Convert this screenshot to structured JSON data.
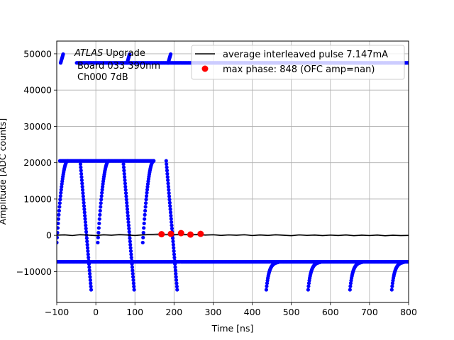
{
  "chart_data": {
    "type": "scatter",
    "xlabel": "Time [ns]",
    "ylabel": "Amplitude [ADC counts]",
    "xlim": [
      -100,
      800
    ],
    "ylim": [
      -18500,
      53500
    ],
    "xticks": [
      -100,
      0,
      100,
      200,
      300,
      400,
      500,
      600,
      700,
      800
    ],
    "yticks": [
      -10000,
      0,
      10000,
      20000,
      30000,
      40000,
      50000
    ],
    "xtick_labels": [
      "−100",
      "0",
      "100",
      "200",
      "300",
      "400",
      "500",
      "600",
      "700",
      "800"
    ],
    "ytick_labels": [
      "−10000",
      "0",
      "10000",
      "20000",
      "30000",
      "40000",
      "50000"
    ],
    "grid": true,
    "legend_position": "top-right",
    "annotation": {
      "atlas": "ATLAS",
      "upgrade": "Upgrade",
      "line2": "Board 033  390nm",
      "line3": "Ch000 7dB"
    },
    "series": [
      {
        "name": "average interleaved pulse 7.147mA",
        "kind": "line",
        "color": "#000000",
        "points": [
          [
            -100,
            50
          ],
          [
            -80,
            120
          ],
          [
            -60,
            -60
          ],
          [
            -40,
            180
          ],
          [
            -20,
            60
          ],
          [
            0,
            -80
          ],
          [
            20,
            140
          ],
          [
            40,
            30
          ],
          [
            60,
            200
          ],
          [
            80,
            90
          ],
          [
            100,
            -40
          ],
          [
            120,
            120
          ],
          [
            140,
            250
          ],
          [
            160,
            320
          ],
          [
            180,
            280
          ],
          [
            200,
            180
          ],
          [
            220,
            260
          ],
          [
            240,
            150
          ],
          [
            260,
            220
          ],
          [
            280,
            80
          ],
          [
            300,
            160
          ],
          [
            320,
            -20
          ],
          [
            340,
            110
          ],
          [
            360,
            30
          ],
          [
            380,
            160
          ],
          [
            400,
            -60
          ],
          [
            420,
            90
          ],
          [
            440,
            -30
          ],
          [
            460,
            140
          ],
          [
            480,
            20
          ],
          [
            500,
            -90
          ],
          [
            520,
            110
          ],
          [
            540,
            -10
          ],
          [
            560,
            80
          ],
          [
            580,
            -70
          ],
          [
            600,
            60
          ],
          [
            620,
            -40
          ],
          [
            640,
            100
          ],
          [
            660,
            -100
          ],
          [
            680,
            40
          ],
          [
            700,
            -60
          ],
          [
            720,
            80
          ],
          [
            740,
            -120
          ],
          [
            760,
            20
          ],
          [
            780,
            -80
          ],
          [
            800,
            -30
          ]
        ]
      },
      {
        "name": "max phase: 848 (OFC amp=nan)",
        "kind": "scatter",
        "color": "#ff0000",
        "points": [
          [
            168,
            300
          ],
          [
            192,
            400
          ],
          [
            218,
            600
          ],
          [
            242,
            200
          ],
          [
            268,
            400
          ]
        ]
      },
      {
        "name": "",
        "kind": "samples",
        "color": "#0000ff",
        "baselines": {
          "low": -7300,
          "high": 47500,
          "mid": 20500
        },
        "falling_edges": [
          -40,
          70,
          180
        ],
        "rising_edges": [
          -100,
          5,
          120
        ],
        "recovery_starts": [
          436,
          543,
          650,
          757
        ],
        "high_spikes": [
          -90,
          80,
          185
        ]
      }
    ]
  }
}
